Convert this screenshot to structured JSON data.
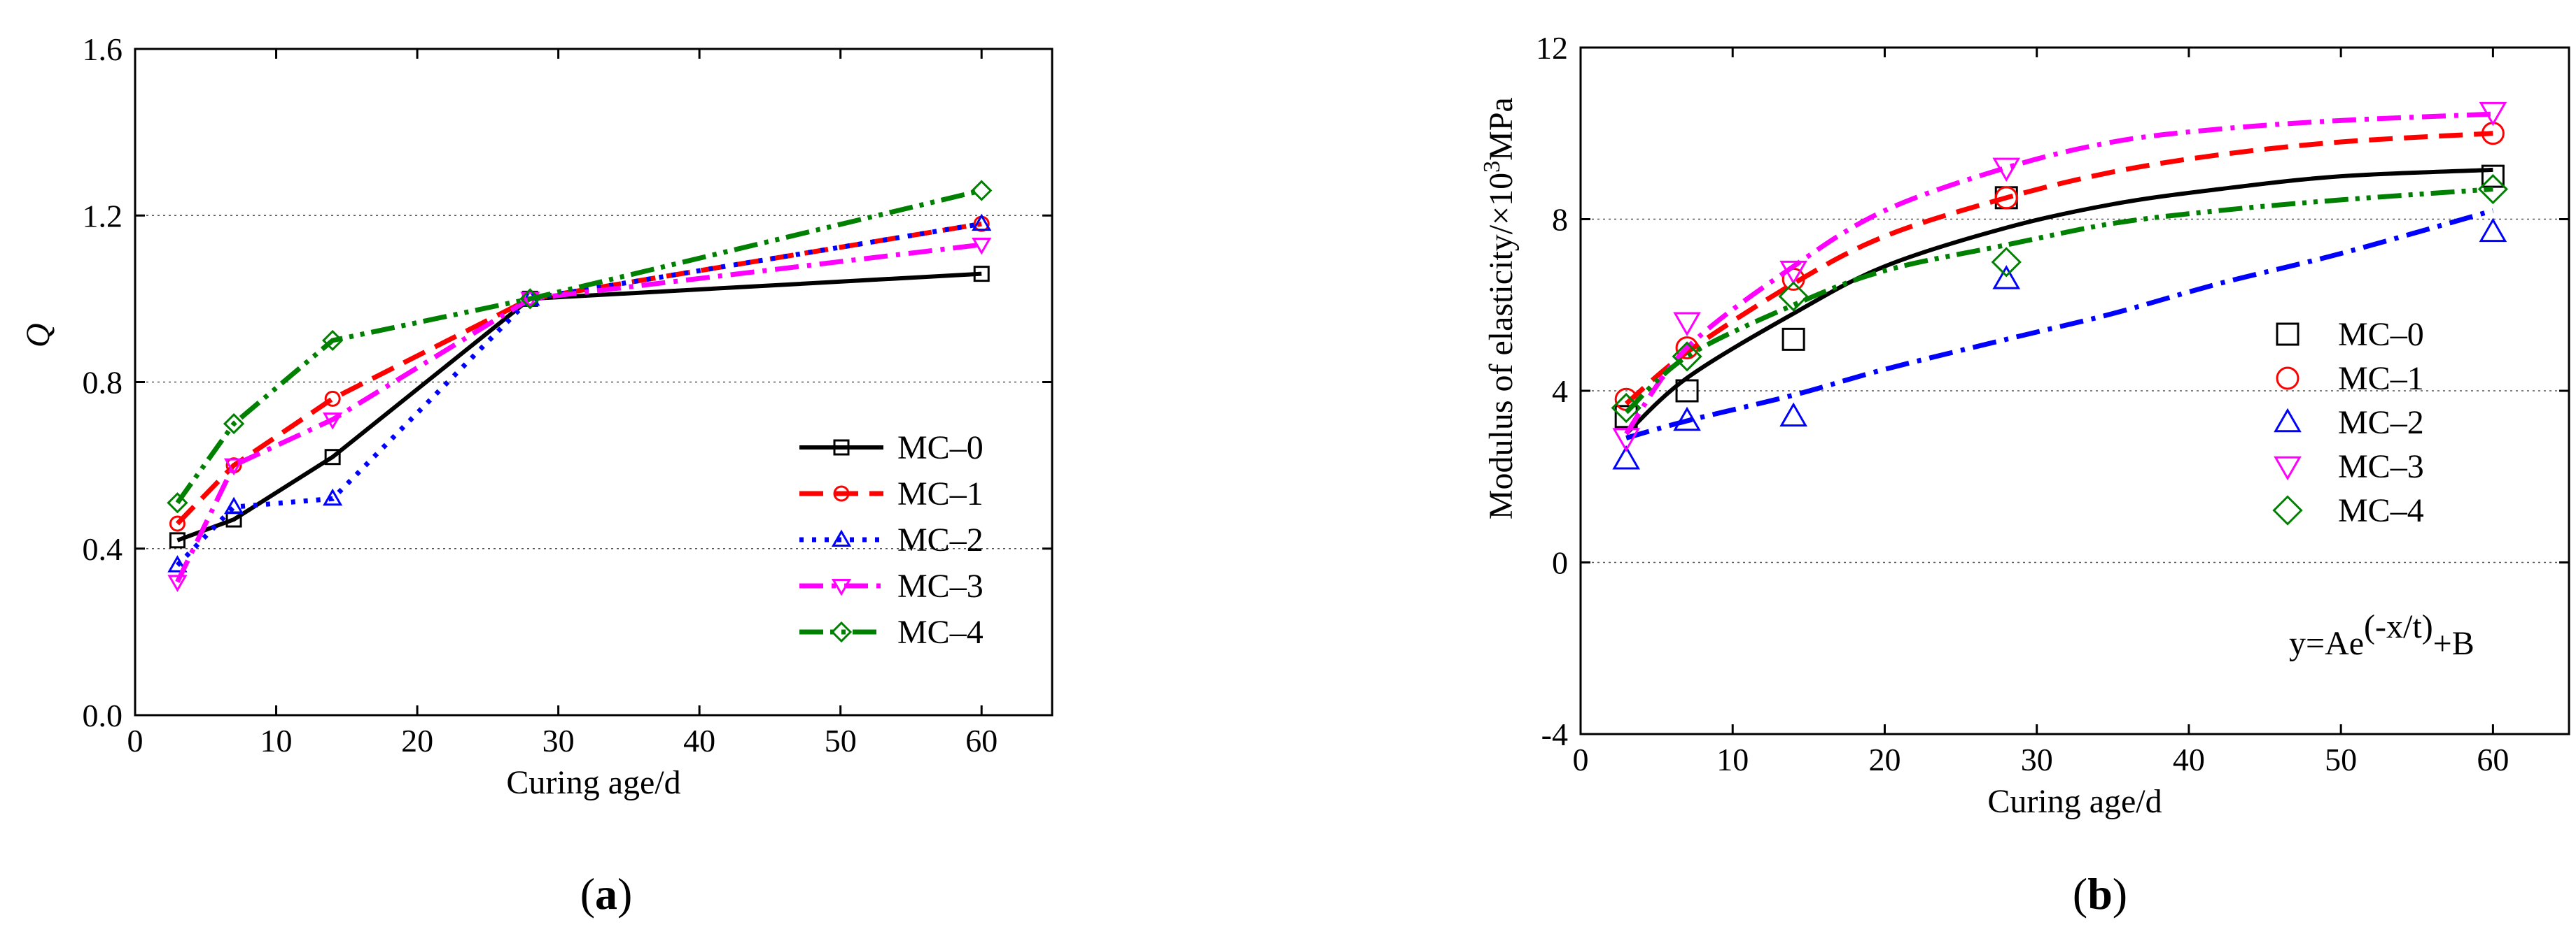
{
  "figure": {
    "panels": [
      {
        "id": "a",
        "label_open": "(",
        "label_letter": "a",
        "label_close": ")"
      },
      {
        "id": "b",
        "label_open": "(",
        "label_letter": "b",
        "label_close": ")"
      }
    ]
  },
  "chart_data": [
    {
      "type": "line",
      "panel": "a",
      "title": "",
      "xlabel": "Curing age/d",
      "ylabel": "Q",
      "xlim": [
        0,
        65
      ],
      "ylim": [
        0.0,
        1.6
      ],
      "xticks": [
        0,
        10,
        20,
        30,
        40,
        50,
        60
      ],
      "yticks": [
        0.0,
        0.4,
        0.8,
        1.2,
        1.6
      ],
      "ytick_labels": [
        "0.0",
        "0.4",
        "0.8",
        "1.2",
        "1.6"
      ],
      "grid": "horizontal dotted at 0.4, 0.8, 1.2",
      "legend_position": "center-right",
      "x": [
        3,
        7,
        14,
        28,
        60
      ],
      "series": [
        {
          "name": "MC–0",
          "color": "#000000",
          "marker": "square",
          "dash": "solid",
          "values": [
            0.42,
            0.47,
            0.62,
            1.0,
            1.06
          ]
        },
        {
          "name": "MC–1",
          "color": "#ff0000",
          "marker": "circle",
          "dash": "dash",
          "values": [
            0.46,
            0.6,
            0.76,
            1.0,
            1.18
          ]
        },
        {
          "name": "MC–2",
          "color": "#0000ff",
          "marker": "triangle-up",
          "dash": "dot",
          "values": [
            0.36,
            0.5,
            0.52,
            1.0,
            1.18
          ]
        },
        {
          "name": "MC–3",
          "color": "#ff00ff",
          "marker": "triangle-down",
          "dash": "dashdot",
          "values": [
            0.32,
            0.6,
            0.71,
            1.0,
            1.13
          ]
        },
        {
          "name": "MC–4",
          "color": "#008000",
          "marker": "diamond",
          "dash": "dashdotdot",
          "values": [
            0.51,
            0.7,
            0.9,
            1.0,
            1.26
          ]
        }
      ]
    },
    {
      "type": "scatter",
      "panel": "b",
      "title": "",
      "xlabel": "Curing age/d",
      "ylabel_main": "Modulus of elasticity/×10",
      "ylabel_sup": "3",
      "ylabel_unit": "MPa",
      "xlim": [
        0,
        65
      ],
      "ylim": [
        -4,
        12
      ],
      "xticks": [
        0,
        10,
        20,
        30,
        40,
        50,
        60
      ],
      "yticks": [
        -4,
        0,
        4,
        8,
        12
      ],
      "grid": "horizontal dotted at 0, 4, 8",
      "legend_position": "center-right",
      "equation_main": "y=Ae",
      "equation_sup": "(-x/t)",
      "equation_tail": "+B",
      "x": [
        3,
        7,
        14,
        28,
        60
      ],
      "series": [
        {
          "name": "MC–0",
          "color": "#000000",
          "marker": "square",
          "dash": "solid",
          "values": [
            3.4,
            4.0,
            5.2,
            8.5,
            9.0
          ],
          "fit": {
            "x": [
              3,
              7,
              14,
              20,
              28,
              35,
              42,
              50,
              60
            ],
            "y": [
              3.0,
              4.3,
              5.8,
              6.9,
              7.8,
              8.35,
              8.7,
              9.0,
              9.15
            ]
          }
        },
        {
          "name": "MC–1",
          "color": "#ff0000",
          "marker": "circle",
          "dash": "dash",
          "values": [
            3.8,
            5.0,
            6.6,
            8.5,
            10.0
          ],
          "fit": {
            "x": [
              3,
              7,
              14,
              20,
              28,
              35,
              42,
              50,
              60
            ],
            "y": [
              3.7,
              4.9,
              6.5,
              7.6,
              8.5,
              9.1,
              9.5,
              9.8,
              10.0
            ]
          }
        },
        {
          "name": "MC–2",
          "color": "#0000ff",
          "marker": "triangle-up",
          "dash": "dashdot",
          "values": [
            2.4,
            3.3,
            3.4,
            6.6,
            7.7
          ],
          "fit": {
            "x": [
              3,
              7,
              14,
              20,
              28,
              35,
              42,
              50,
              60
            ],
            "y": [
              2.9,
              3.3,
              3.9,
              4.5,
              5.2,
              5.8,
              6.5,
              7.2,
              8.2
            ]
          }
        },
        {
          "name": "MC–3",
          "color": "#ff00ff",
          "marker": "triangle-down",
          "dash": "dashdot",
          "values": [
            2.9,
            5.6,
            6.8,
            9.2,
            10.5
          ],
          "fit": {
            "x": [
              3,
              7,
              14,
              20,
              28,
              35,
              42,
              50,
              60
            ],
            "y": [
              3.0,
              5.0,
              6.9,
              8.2,
              9.2,
              9.8,
              10.1,
              10.3,
              10.45
            ]
          }
        },
        {
          "name": "MC–4",
          "color": "#008000",
          "marker": "diamond",
          "dash": "dashdotdot",
          "values": [
            3.6,
            4.8,
            6.2,
            7.0,
            8.7
          ],
          "fit": {
            "x": [
              3,
              7,
              14,
              20,
              28,
              35,
              42,
              50,
              60
            ],
            "y": [
              3.5,
              4.8,
              6.0,
              6.8,
              7.4,
              7.9,
              8.2,
              8.45,
              8.7
            ]
          }
        }
      ]
    }
  ]
}
